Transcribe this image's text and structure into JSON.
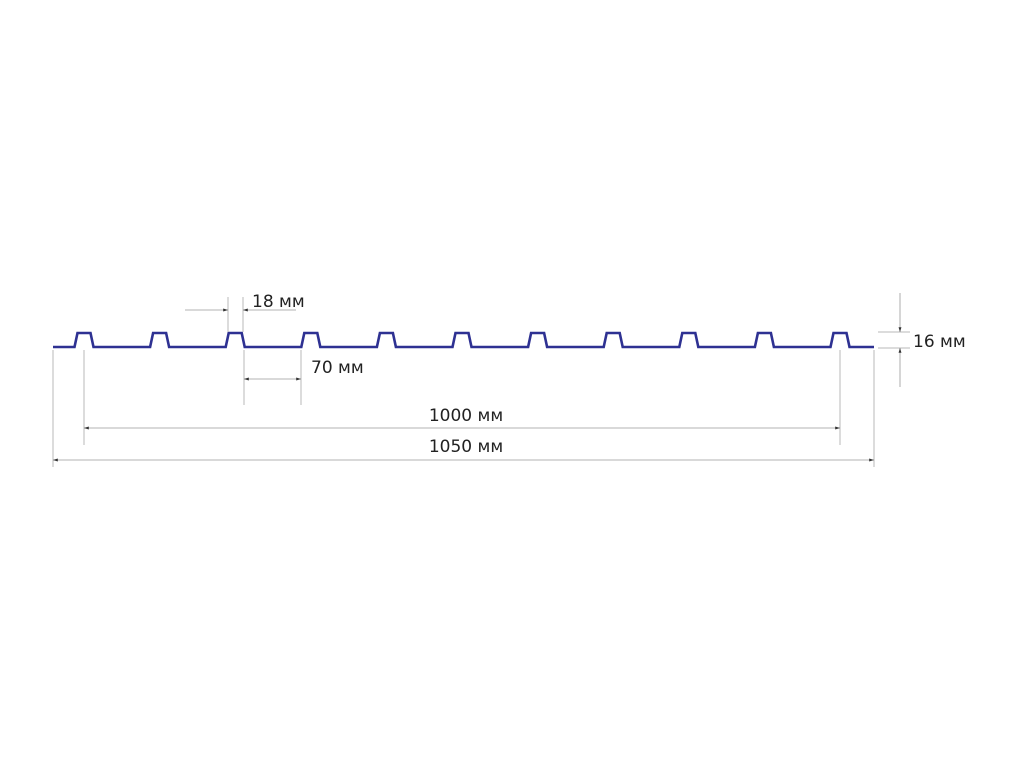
{
  "profile": {
    "rib_count": 11,
    "line_color": "#2e3192"
  },
  "dimensions": {
    "rib_top": "18 мм",
    "rib_pitch": "70 мм",
    "rib_height": "16 мм",
    "useful_width": "1000 мм",
    "total_width": "1050 мм"
  }
}
